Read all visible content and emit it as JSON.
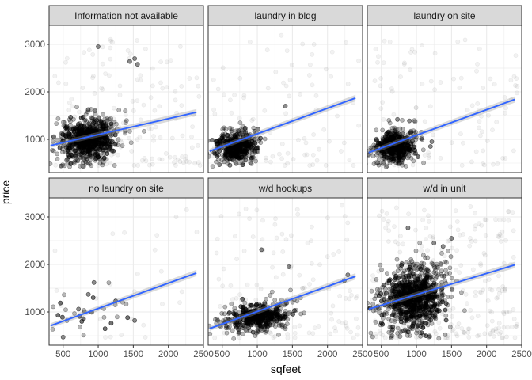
{
  "chart_data": {
    "type": "scatter",
    "facet_variable": "laundry",
    "xlabel": "sqfeet",
    "ylabel": "price",
    "xlim": [
      300,
      2500
    ],
    "ylim": [
      300,
      3400
    ],
    "x_ticks": [
      500,
      1000,
      1500,
      2000,
      2500
    ],
    "y_ticks": [
      1000,
      2000,
      3000
    ],
    "point_color": "#000000",
    "line_color": "#3366FF",
    "panel_border_color": "#333333",
    "strip_fill": "#D9D9D9",
    "grid_color": "#EBEBEB",
    "panels": [
      {
        "label": "Information not available",
        "trend": {
          "x": [
            320,
            2400
          ],
          "y": [
            870,
            1570
          ]
        },
        "cluster": {
          "cx": 850,
          "cy": 1000,
          "sx": 230,
          "sy": 260,
          "n": 460
        },
        "spread": 150,
        "notable_points": [
          [
            1000,
            2950
          ],
          [
            1520,
            2700
          ],
          [
            1560,
            2580
          ],
          [
            1450,
            2640
          ]
        ]
      },
      {
        "label": "laundry in bldg",
        "trend": {
          "x": [
            320,
            2400
          ],
          "y": [
            750,
            1870
          ]
        },
        "cluster": {
          "cx": 720,
          "cy": 850,
          "sx": 180,
          "sy": 200,
          "n": 280
        },
        "spread": 90,
        "notable_points": [
          [
            1400,
            1700
          ],
          [
            1010,
            1210
          ],
          [
            960,
            1170
          ]
        ]
      },
      {
        "label": "laundry on site",
        "trend": {
          "x": [
            320,
            2400
          ],
          "y": [
            720,
            1840
          ]
        },
        "cluster": {
          "cx": 700,
          "cy": 850,
          "sx": 160,
          "sy": 200,
          "n": 320
        },
        "spread": 100,
        "notable_points": [
          [
            730,
            1420
          ],
          [
            900,
            1390
          ],
          [
            1220,
            950
          ],
          [
            1200,
            850
          ]
        ]
      },
      {
        "label": "no laundry on site",
        "trend": {
          "x": [
            320,
            2400
          ],
          "y": [
            710,
            1820
          ]
        },
        "cluster": {
          "cx": 900,
          "cy": 950,
          "sx": 400,
          "sy": 300,
          "n": 20
        },
        "spread": 25,
        "notable_points": [
          [
            500,
            470
          ],
          [
            940,
            1620
          ],
          [
            1520,
            820
          ],
          [
            860,
            1370
          ],
          [
            720,
            1060
          ]
        ]
      },
      {
        "label": "w/d hookups",
        "trend": {
          "x": [
            320,
            2400
          ],
          "y": [
            650,
            1750
          ]
        },
        "cluster": {
          "cx": 1000,
          "cy": 900,
          "sx": 260,
          "sy": 170,
          "n": 300
        },
        "spread": 120,
        "notable_points": [
          [
            1060,
            2310
          ],
          [
            1450,
            1950
          ],
          [
            2290,
            1780
          ],
          [
            2240,
            1660
          ]
        ]
      },
      {
        "label": "w/d in unit",
        "trend": {
          "x": [
            320,
            2400
          ],
          "y": [
            1060,
            1990
          ]
        },
        "cluster": {
          "cx": 950,
          "cy": 1300,
          "sx": 260,
          "sy": 380,
          "n": 560
        },
        "spread": 250,
        "notable_points": [
          [
            880,
            2770
          ],
          [
            1380,
            2380
          ],
          [
            1500,
            2550
          ],
          [
            1250,
            2450
          ]
        ]
      }
    ]
  }
}
